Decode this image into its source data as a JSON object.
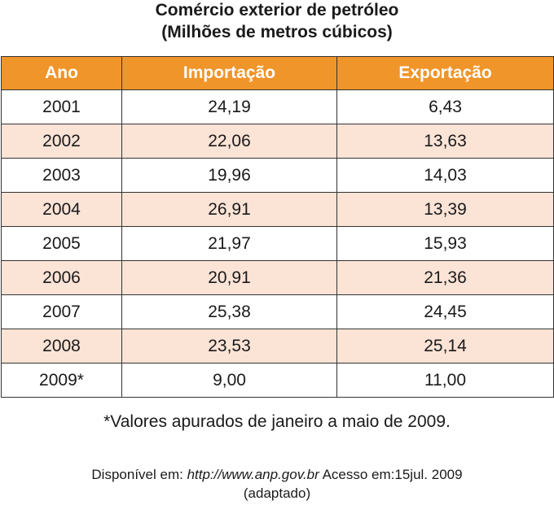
{
  "title": {
    "line1": "Comércio exterior de petróleo",
    "line2": "(Milhões de metros cúbicos)"
  },
  "table": {
    "headers": [
      "Ano",
      "Importação",
      "Exportação"
    ],
    "rows": [
      [
        "2001",
        "24,19",
        "6,43"
      ],
      [
        "2002",
        "22,06",
        "13,63"
      ],
      [
        "2003",
        "19,96",
        "14,03"
      ],
      [
        "2004",
        "26,91",
        "13,39"
      ],
      [
        "2005",
        "21,97",
        "15,93"
      ],
      [
        "2006",
        "20,91",
        "21,36"
      ],
      [
        "2007",
        "25,38",
        "24,45"
      ],
      [
        "2008",
        "23,53",
        "25,14"
      ],
      [
        "2009*",
        "9,00",
        "11,00"
      ]
    ]
  },
  "note": "*Valores apurados de janeiro a maio de 2009.",
  "source": {
    "prefix": "Disponível em: ",
    "url": "http://www.anp.gov.br",
    "suffix": " Acesso em:15jul. 2009",
    "line2": "(adaptado)"
  },
  "colors": {
    "header_bg": "#f0952a",
    "header_text": "#ffffff",
    "alt_row_bg": "#fbe3d6",
    "border": "#333333"
  }
}
